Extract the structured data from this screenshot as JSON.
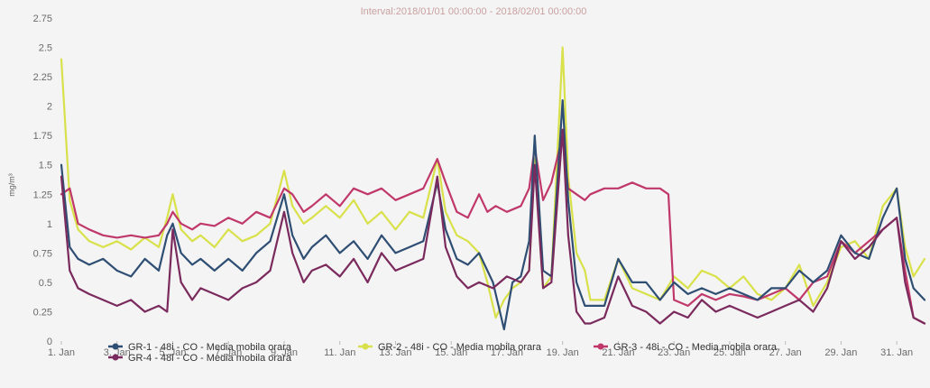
{
  "chart_data": {
    "type": "line",
    "title": "Interval:2018/01/01 00:00:00 - 2018/02/01 00:00:00",
    "ylabel": "mg/m³",
    "xlabel": "",
    "ylim": [
      0,
      2.75
    ],
    "xlim": [
      1,
      32
    ],
    "y_ticks": [
      "0",
      "0.25",
      "0.5",
      "0.75",
      "1",
      "1.25",
      "1.5",
      "1.75",
      "2",
      "2.25",
      "2.5",
      "2.75"
    ],
    "x_ticks": [
      {
        "x": 1,
        "label": "1. Jan"
      },
      {
        "x": 3,
        "label": "3. Jan"
      },
      {
        "x": 5,
        "label": "5. Jan"
      },
      {
        "x": 7,
        "label": "7. Jan"
      },
      {
        "x": 9,
        "label": "9. Jan"
      },
      {
        "x": 11,
        "label": "11. Jan"
      },
      {
        "x": 13,
        "label": "13. Jan"
      },
      {
        "x": 15,
        "label": "15. Jan"
      },
      {
        "x": 17,
        "label": "17. Jan"
      },
      {
        "x": 19,
        "label": "19. Jan"
      },
      {
        "x": 21,
        "label": "21. Jan"
      },
      {
        "x": 23,
        "label": "23. Jan"
      },
      {
        "x": 25,
        "label": "25. Jan"
      },
      {
        "x": 27,
        "label": "27. Jan"
      },
      {
        "x": 29,
        "label": "29. Jan"
      },
      {
        "x": 31,
        "label": "31. Jan"
      }
    ],
    "grid": false,
    "legend_position": "bottom",
    "series": [
      {
        "name": "GR-2 - 48i - CO - Media mobila orara",
        "color": "#d9e14a",
        "points": [
          [
            1,
            2.4
          ],
          [
            1.3,
            1.2
          ],
          [
            1.6,
            0.95
          ],
          [
            2,
            0.85
          ],
          [
            2.5,
            0.8
          ],
          [
            3,
            0.85
          ],
          [
            3.5,
            0.78
          ],
          [
            4,
            0.88
          ],
          [
            4.5,
            0.8
          ],
          [
            4.8,
            1.05
          ],
          [
            5,
            1.25
          ],
          [
            5.3,
            0.95
          ],
          [
            5.7,
            0.85
          ],
          [
            6,
            0.9
          ],
          [
            6.5,
            0.8
          ],
          [
            7,
            0.95
          ],
          [
            7.5,
            0.85
          ],
          [
            8,
            0.9
          ],
          [
            8.5,
            1.0
          ],
          [
            9,
            1.45
          ],
          [
            9.3,
            1.15
          ],
          [
            9.7,
            1.0
          ],
          [
            10,
            1.05
          ],
          [
            10.5,
            1.15
          ],
          [
            11,
            1.05
          ],
          [
            11.5,
            1.2
          ],
          [
            12,
            1.0
          ],
          [
            12.5,
            1.1
          ],
          [
            13,
            0.95
          ],
          [
            13.5,
            1.1
          ],
          [
            14,
            1.05
          ],
          [
            14.5,
            1.55
          ],
          [
            14.8,
            1.1
          ],
          [
            15.2,
            0.9
          ],
          [
            15.6,
            0.85
          ],
          [
            16,
            0.75
          ],
          [
            16.3,
            0.5
          ],
          [
            16.6,
            0.2
          ],
          [
            16.9,
            0.35
          ],
          [
            17.2,
            0.45
          ],
          [
            17.5,
            0.5
          ],
          [
            17.8,
            0.6
          ],
          [
            18,
            1.55
          ],
          [
            18.3,
            0.45
          ],
          [
            18.6,
            0.55
          ],
          [
            19,
            2.5
          ],
          [
            19.2,
            1.4
          ],
          [
            19.5,
            0.75
          ],
          [
            19.8,
            0.6
          ],
          [
            20,
            0.35
          ],
          [
            20.5,
            0.35
          ],
          [
            21,
            0.7
          ],
          [
            21.5,
            0.45
          ],
          [
            22,
            0.4
          ],
          [
            22.5,
            0.35
          ],
          [
            23,
            0.55
          ],
          [
            23.5,
            0.45
          ],
          [
            24,
            0.6
          ],
          [
            24.5,
            0.55
          ],
          [
            25,
            0.45
          ],
          [
            25.5,
            0.55
          ],
          [
            26,
            0.4
          ],
          [
            26.5,
            0.35
          ],
          [
            27,
            0.45
          ],
          [
            27.5,
            0.65
          ],
          [
            28,
            0.3
          ],
          [
            28.5,
            0.5
          ],
          [
            29,
            0.8
          ],
          [
            29.5,
            0.85
          ],
          [
            30,
            0.7
          ],
          [
            30.5,
            1.15
          ],
          [
            31,
            1.3
          ],
          [
            31.3,
            0.8
          ],
          [
            31.6,
            0.55
          ],
          [
            32,
            0.7
          ]
        ]
      },
      {
        "name": "GR-3 - 48i - CO - Media mobila orara",
        "color": "#c0386a",
        "points": [
          [
            1,
            1.25
          ],
          [
            1.3,
            1.3
          ],
          [
            1.6,
            1.0
          ],
          [
            2,
            0.95
          ],
          [
            2.5,
            0.9
          ],
          [
            3,
            0.88
          ],
          [
            3.5,
            0.9
          ],
          [
            4,
            0.88
          ],
          [
            4.5,
            0.9
          ],
          [
            4.8,
            1.0
          ],
          [
            5,
            1.1
          ],
          [
            5.3,
            1.0
          ],
          [
            5.7,
            0.95
          ],
          [
            6,
            1.0
          ],
          [
            6.5,
            0.98
          ],
          [
            7,
            1.05
          ],
          [
            7.5,
            1.0
          ],
          [
            8,
            1.1
          ],
          [
            8.5,
            1.05
          ],
          [
            9,
            1.3
          ],
          [
            9.3,
            1.25
          ],
          [
            9.7,
            1.1
          ],
          [
            10,
            1.15
          ],
          [
            10.5,
            1.25
          ],
          [
            11,
            1.15
          ],
          [
            11.5,
            1.3
          ],
          [
            12,
            1.25
          ],
          [
            12.5,
            1.3
          ],
          [
            13,
            1.2
          ],
          [
            13.5,
            1.25
          ],
          [
            14,
            1.3
          ],
          [
            14.5,
            1.55
          ],
          [
            14.8,
            1.35
          ],
          [
            15.2,
            1.1
          ],
          [
            15.6,
            1.05
          ],
          [
            16,
            1.25
          ],
          [
            16.3,
            1.1
          ],
          [
            16.6,
            1.15
          ],
          [
            17,
            1.1
          ],
          [
            17.5,
            1.15
          ],
          [
            17.8,
            1.3
          ],
          [
            18,
            1.65
          ],
          [
            18.3,
            1.2
          ],
          [
            18.6,
            1.35
          ],
          [
            19,
            1.75
          ],
          [
            19.2,
            1.3
          ],
          [
            19.5,
            1.25
          ],
          [
            19.8,
            1.2
          ],
          [
            20,
            1.25
          ],
          [
            20.5,
            1.3
          ],
          [
            21,
            1.3
          ],
          [
            21.5,
            1.35
          ],
          [
            22,
            1.3
          ],
          [
            22.5,
            1.3
          ],
          [
            22.8,
            1.25
          ],
          [
            23,
            0.35
          ],
          [
            23.5,
            0.3
          ],
          [
            24,
            0.4
          ],
          [
            24.5,
            0.35
          ],
          [
            25,
            0.4
          ],
          [
            25.5,
            0.38
          ],
          [
            26,
            0.35
          ],
          [
            26.5,
            0.4
          ],
          [
            27,
            0.45
          ],
          [
            27.5,
            0.35
          ],
          [
            28,
            0.5
          ],
          [
            28.5,
            0.55
          ],
          [
            29,
            0.85
          ],
          [
            29.5,
            0.75
          ],
          [
            30,
            0.85
          ],
          [
            30.5,
            0.95
          ],
          [
            31,
            1.05
          ],
          [
            31.3,
            0.6
          ],
          [
            31.6,
            0.2
          ],
          [
            32,
            0.15
          ]
        ]
      },
      {
        "name": "GR-1 - 48i - CO - Media mobila orara",
        "color": "#2f4e73",
        "points": [
          [
            1,
            1.5
          ],
          [
            1.3,
            0.8
          ],
          [
            1.6,
            0.7
          ],
          [
            2,
            0.65
          ],
          [
            2.5,
            0.7
          ],
          [
            3,
            0.6
          ],
          [
            3.5,
            0.55
          ],
          [
            4,
            0.7
          ],
          [
            4.5,
            0.6
          ],
          [
            4.8,
            0.9
          ],
          [
            5,
            1.0
          ],
          [
            5.3,
            0.75
          ],
          [
            5.7,
            0.65
          ],
          [
            6,
            0.7
          ],
          [
            6.5,
            0.6
          ],
          [
            7,
            0.7
          ],
          [
            7.5,
            0.6
          ],
          [
            8,
            0.75
          ],
          [
            8.5,
            0.85
          ],
          [
            9,
            1.25
          ],
          [
            9.3,
            0.9
          ],
          [
            9.7,
            0.7
          ],
          [
            10,
            0.8
          ],
          [
            10.5,
            0.9
          ],
          [
            11,
            0.75
          ],
          [
            11.5,
            0.85
          ],
          [
            12,
            0.7
          ],
          [
            12.5,
            0.9
          ],
          [
            13,
            0.75
          ],
          [
            13.5,
            0.8
          ],
          [
            14,
            0.85
          ],
          [
            14.5,
            1.35
          ],
          [
            14.8,
            0.95
          ],
          [
            15.2,
            0.7
          ],
          [
            15.6,
            0.65
          ],
          [
            16,
            0.75
          ],
          [
            16.5,
            0.5
          ],
          [
            16.9,
            0.1
          ],
          [
            17.2,
            0.5
          ],
          [
            17.5,
            0.55
          ],
          [
            17.8,
            0.85
          ],
          [
            18,
            1.75
          ],
          [
            18.3,
            0.6
          ],
          [
            18.6,
            0.55
          ],
          [
            19,
            2.05
          ],
          [
            19.2,
            1.2
          ],
          [
            19.5,
            0.5
          ],
          [
            19.8,
            0.3
          ],
          [
            20,
            0.3
          ],
          [
            20.5,
            0.3
          ],
          [
            21,
            0.7
          ],
          [
            21.5,
            0.5
          ],
          [
            22,
            0.5
          ],
          [
            22.5,
            0.35
          ],
          [
            23,
            0.5
          ],
          [
            23.5,
            0.4
          ],
          [
            24,
            0.45
          ],
          [
            24.5,
            0.4
          ],
          [
            25,
            0.45
          ],
          [
            25.5,
            0.4
          ],
          [
            26,
            0.35
          ],
          [
            26.5,
            0.45
          ],
          [
            27,
            0.45
          ],
          [
            27.5,
            0.6
          ],
          [
            28,
            0.5
          ],
          [
            28.5,
            0.6
          ],
          [
            29,
            0.9
          ],
          [
            29.5,
            0.75
          ],
          [
            30,
            0.7
          ],
          [
            30.5,
            1.05
          ],
          [
            31,
            1.3
          ],
          [
            31.3,
            0.7
          ],
          [
            31.6,
            0.45
          ],
          [
            32,
            0.35
          ]
        ]
      },
      {
        "name": "GR-4 - 48i - CO - Media mobila orara",
        "color": "#7a2a5c",
        "points": [
          [
            1,
            1.4
          ],
          [
            1.3,
            0.6
          ],
          [
            1.6,
            0.45
          ],
          [
            2,
            0.4
          ],
          [
            2.5,
            0.35
          ],
          [
            3,
            0.3
          ],
          [
            3.5,
            0.35
          ],
          [
            4,
            0.25
          ],
          [
            4.5,
            0.3
          ],
          [
            4.8,
            0.25
          ],
          [
            5,
            0.95
          ],
          [
            5.3,
            0.5
          ],
          [
            5.7,
            0.35
          ],
          [
            6,
            0.45
          ],
          [
            6.5,
            0.4
          ],
          [
            7,
            0.35
          ],
          [
            7.5,
            0.45
          ],
          [
            8,
            0.5
          ],
          [
            8.5,
            0.6
          ],
          [
            9,
            1.1
          ],
          [
            9.3,
            0.75
          ],
          [
            9.7,
            0.5
          ],
          [
            10,
            0.6
          ],
          [
            10.5,
            0.65
          ],
          [
            11,
            0.55
          ],
          [
            11.5,
            0.7
          ],
          [
            12,
            0.5
          ],
          [
            12.5,
            0.75
          ],
          [
            13,
            0.6
          ],
          [
            13.5,
            0.65
          ],
          [
            14,
            0.7
          ],
          [
            14.5,
            1.4
          ],
          [
            14.8,
            0.8
          ],
          [
            15.2,
            0.55
          ],
          [
            15.6,
            0.45
          ],
          [
            16,
            0.5
          ],
          [
            16.5,
            0.45
          ],
          [
            17,
            0.55
          ],
          [
            17.5,
            0.5
          ],
          [
            17.8,
            0.6
          ],
          [
            18,
            1.5
          ],
          [
            18.3,
            0.45
          ],
          [
            18.6,
            0.5
          ],
          [
            19,
            1.8
          ],
          [
            19.2,
            0.9
          ],
          [
            19.5,
            0.25
          ],
          [
            19.8,
            0.15
          ],
          [
            20,
            0.15
          ],
          [
            20.5,
            0.2
          ],
          [
            21,
            0.55
          ],
          [
            21.5,
            0.3
          ],
          [
            22,
            0.25
          ],
          [
            22.5,
            0.15
          ],
          [
            23,
            0.25
          ],
          [
            23.5,
            0.2
          ],
          [
            24,
            0.35
          ],
          [
            24.5,
            0.25
          ],
          [
            25,
            0.3
          ],
          [
            25.5,
            0.25
          ],
          [
            26,
            0.2
          ],
          [
            26.5,
            0.25
          ],
          [
            27,
            0.3
          ],
          [
            27.5,
            0.35
          ],
          [
            28,
            0.25
          ],
          [
            28.5,
            0.45
          ],
          [
            29,
            0.85
          ],
          [
            29.5,
            0.7
          ],
          [
            30,
            0.8
          ],
          [
            30.5,
            0.95
          ],
          [
            31,
            1.05
          ],
          [
            31.3,
            0.5
          ],
          [
            31.6,
            0.2
          ],
          [
            32,
            0.15
          ]
        ]
      }
    ],
    "legend": [
      {
        "label": "GR-1 - 48i - CO - Media mobila orara",
        "color": "#2f4e73"
      },
      {
        "label": "GR-2 - 48i - CO - Media mobila orara",
        "color": "#d9e14a"
      },
      {
        "label": "GR-3 - 48i - CO - Media mobila orara",
        "color": "#c0386a"
      },
      {
        "label": "GR-4 - 48i - CO - Media mobila orara",
        "color": "#7a2a5c"
      }
    ]
  }
}
